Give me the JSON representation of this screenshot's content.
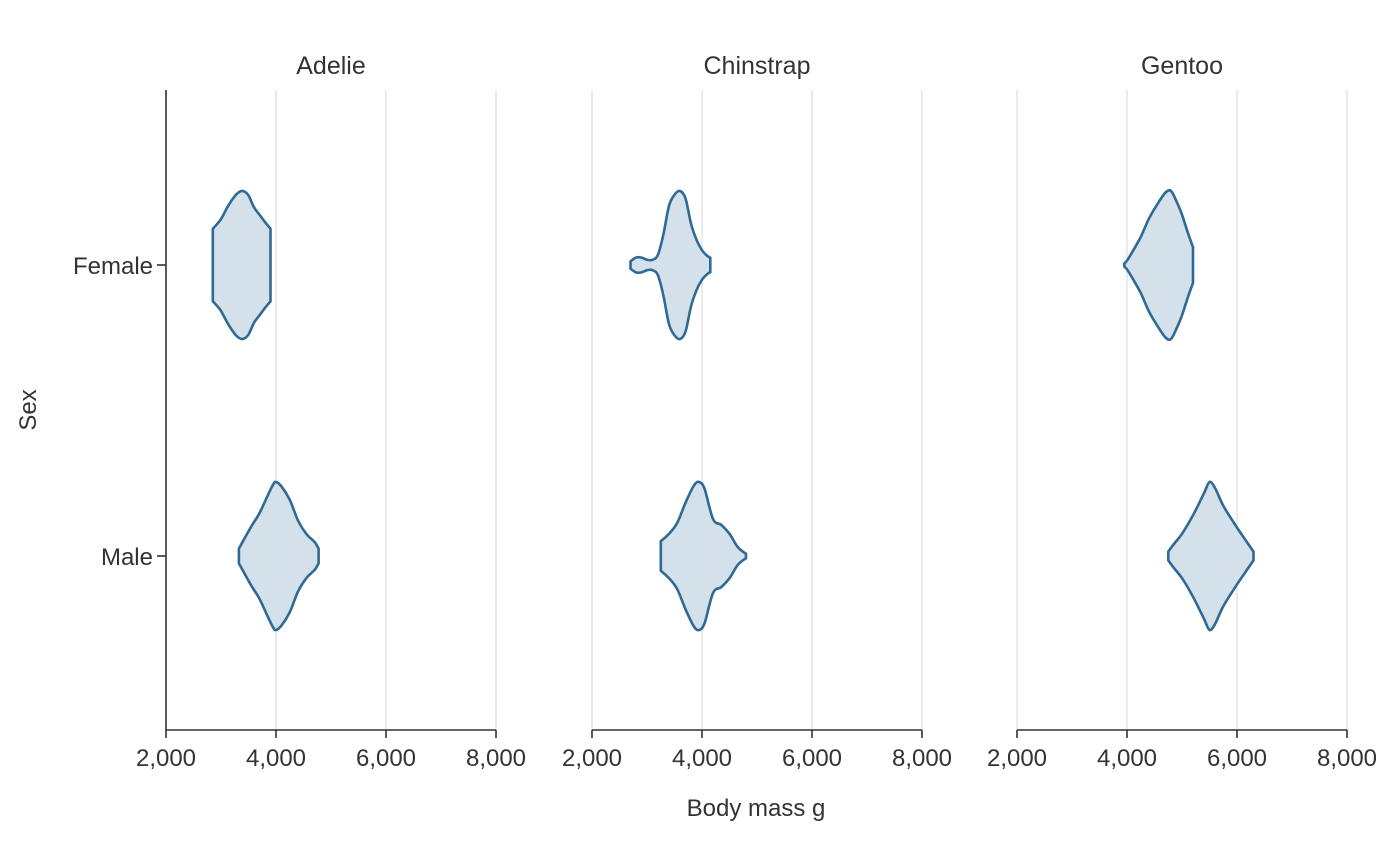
{
  "colors": {
    "violin_fill": "#d4e0ea",
    "violin_stroke": "#2e6a95"
  },
  "chart_data": {
    "type": "violin",
    "xlabel": "Body mass g",
    "ylabel": "Sex",
    "xlim": [
      2000,
      8000
    ],
    "x_ticks": [
      2000,
      4000,
      6000,
      8000
    ],
    "x_tick_labels": [
      "2,000",
      "4,000",
      "6,000",
      "8,000"
    ],
    "y_categories": [
      "Female",
      "Male"
    ],
    "grid": "vertical major gridlines",
    "facets": [
      {
        "title": "Adelie",
        "violins": [
          {
            "sex": "Female",
            "min": 2850,
            "max": 3900,
            "profile": [
              [
                2850,
                0.49
              ],
              [
                2900,
                0.53
              ],
              [
                3000,
                0.62
              ],
              [
                3100,
                0.76
              ],
              [
                3200,
                0.88
              ],
              [
                3300,
                0.97
              ],
              [
                3400,
                1.0
              ],
              [
                3500,
                0.94
              ],
              [
                3600,
                0.78
              ],
              [
                3700,
                0.68
              ],
              [
                3800,
                0.58
              ],
              [
                3900,
                0.49
              ]
            ]
          },
          {
            "sex": "Male",
            "min": 3325,
            "max": 4775,
            "profile": [
              [
                3325,
                0.1
              ],
              [
                3400,
                0.2
              ],
              [
                3550,
                0.4
              ],
              [
                3700,
                0.58
              ],
              [
                3850,
                0.82
              ],
              [
                3950,
                0.97
              ],
              [
                4000,
                1.0
              ],
              [
                4100,
                0.94
              ],
              [
                4250,
                0.76
              ],
              [
                4400,
                0.48
              ],
              [
                4550,
                0.3
              ],
              [
                4700,
                0.19
              ],
              [
                4775,
                0.1
              ]
            ]
          }
        ]
      },
      {
        "title": "Chinstrap",
        "violins": [
          {
            "sex": "Female",
            "min": 2700,
            "max": 4150,
            "profile": [
              [
                2700,
                0.05
              ],
              [
                2800,
                0.1
              ],
              [
                2900,
                0.1
              ],
              [
                3000,
                0.07
              ],
              [
                3100,
                0.07
              ],
              [
                3200,
                0.14
              ],
              [
                3300,
                0.42
              ],
              [
                3400,
                0.8
              ],
              [
                3500,
                0.95
              ],
              [
                3600,
                1.0
              ],
              [
                3700,
                0.9
              ],
              [
                3800,
                0.56
              ],
              [
                3900,
                0.34
              ],
              [
                4000,
                0.2
              ],
              [
                4100,
                0.12
              ],
              [
                4150,
                0.1
              ]
            ]
          },
          {
            "sex": "Male",
            "min": 3250,
            "max": 4800,
            "profile": [
              [
                3250,
                0.2
              ],
              [
                3400,
                0.3
              ],
              [
                3550,
                0.45
              ],
              [
                3700,
                0.72
              ],
              [
                3850,
                0.95
              ],
              [
                3950,
                1.0
              ],
              [
                4050,
                0.9
              ],
              [
                4200,
                0.5
              ],
              [
                4350,
                0.42
              ],
              [
                4500,
                0.3
              ],
              [
                4650,
                0.12
              ],
              [
                4800,
                0.03
              ]
            ]
          }
        ]
      },
      {
        "title": "Gentoo",
        "violins": [
          {
            "sex": "Female",
            "min": 3950,
            "max": 5200,
            "profile": [
              [
                3950,
                0.02
              ],
              [
                4000,
                0.06
              ],
              [
                4100,
                0.18
              ],
              [
                4250,
                0.38
              ],
              [
                4400,
                0.63
              ],
              [
                4550,
                0.82
              ],
              [
                4700,
                0.98
              ],
              [
                4800,
                1.0
              ],
              [
                4900,
                0.86
              ],
              [
                5000,
                0.68
              ],
              [
                5100,
                0.45
              ],
              [
                5200,
                0.24
              ]
            ]
          },
          {
            "sex": "Male",
            "min": 4750,
            "max": 6300,
            "profile": [
              [
                4750,
                0.06
              ],
              [
                4850,
                0.16
              ],
              [
                5000,
                0.3
              ],
              [
                5200,
                0.55
              ],
              [
                5400,
                0.85
              ],
              [
                5500,
                1.0
              ],
              [
                5600,
                0.92
              ],
              [
                5750,
                0.68
              ],
              [
                5950,
                0.44
              ],
              [
                6150,
                0.22
              ],
              [
                6300,
                0.06
              ]
            ]
          }
        ]
      }
    ]
  }
}
